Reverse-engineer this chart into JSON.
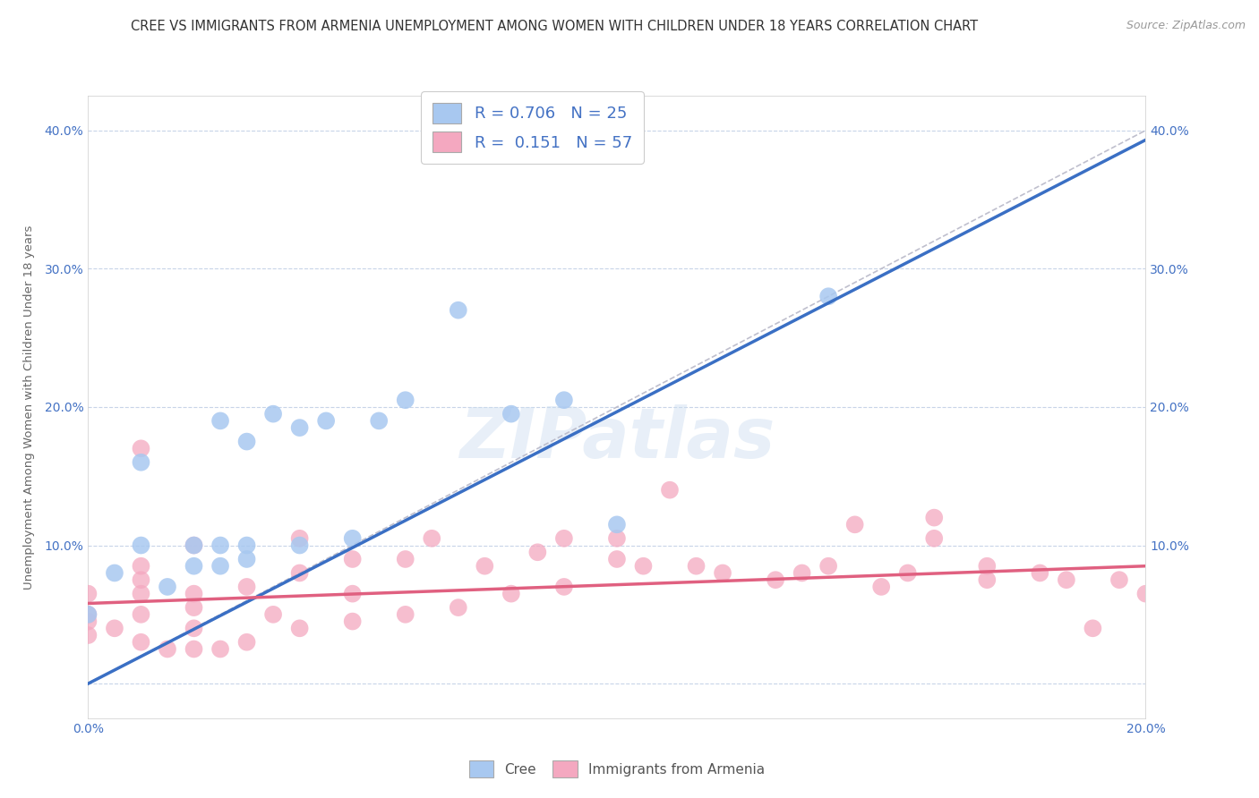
{
  "title": "CREE VS IMMIGRANTS FROM ARMENIA UNEMPLOYMENT AMONG WOMEN WITH CHILDREN UNDER 18 YEARS CORRELATION CHART",
  "source": "Source: ZipAtlas.com",
  "ylabel": "Unemployment Among Women with Children Under 18 years",
  "xlim": [
    0.0,
    0.2
  ],
  "ylim": [
    -0.025,
    0.425
  ],
  "xticks": [
    0.0,
    0.04,
    0.08,
    0.12,
    0.16,
    0.2
  ],
  "yticks": [
    0.0,
    0.1,
    0.2,
    0.3,
    0.4
  ],
  "ytick_labels": [
    "",
    "10.0%",
    "20.0%",
    "30.0%",
    "40.0%"
  ],
  "xtick_labels": [
    "0.0%",
    "",
    "",
    "",
    "",
    "20.0%"
  ],
  "cree_R": 0.706,
  "cree_N": 25,
  "armenia_R": 0.151,
  "armenia_N": 57,
  "cree_color": "#a8c8f0",
  "armenia_color": "#f4a8c0",
  "cree_line_color": "#3a6fc4",
  "armenia_line_color": "#e06080",
  "diagonal_color": "#b8b8c8",
  "cree_scatter_x": [
    0.0,
    0.005,
    0.01,
    0.01,
    0.015,
    0.02,
    0.02,
    0.025,
    0.025,
    0.025,
    0.03,
    0.03,
    0.03,
    0.035,
    0.04,
    0.04,
    0.045,
    0.05,
    0.055,
    0.06,
    0.07,
    0.08,
    0.09,
    0.1,
    0.14
  ],
  "cree_scatter_y": [
    0.05,
    0.08,
    0.1,
    0.16,
    0.07,
    0.085,
    0.1,
    0.085,
    0.1,
    0.19,
    0.09,
    0.1,
    0.175,
    0.195,
    0.1,
    0.185,
    0.19,
    0.105,
    0.19,
    0.205,
    0.27,
    0.195,
    0.205,
    0.115,
    0.28
  ],
  "armenia_scatter_x": [
    0.0,
    0.0,
    0.0,
    0.0,
    0.005,
    0.01,
    0.01,
    0.01,
    0.01,
    0.01,
    0.01,
    0.015,
    0.02,
    0.02,
    0.02,
    0.02,
    0.02,
    0.025,
    0.03,
    0.03,
    0.035,
    0.04,
    0.04,
    0.04,
    0.05,
    0.05,
    0.05,
    0.06,
    0.06,
    0.065,
    0.07,
    0.075,
    0.08,
    0.085,
    0.09,
    0.09,
    0.1,
    0.1,
    0.105,
    0.11,
    0.115,
    0.12,
    0.13,
    0.135,
    0.14,
    0.145,
    0.15,
    0.155,
    0.16,
    0.16,
    0.17,
    0.17,
    0.18,
    0.185,
    0.19,
    0.195,
    0.2
  ],
  "armenia_scatter_y": [
    0.035,
    0.045,
    0.05,
    0.065,
    0.04,
    0.03,
    0.05,
    0.065,
    0.075,
    0.085,
    0.17,
    0.025,
    0.025,
    0.04,
    0.055,
    0.065,
    0.1,
    0.025,
    0.03,
    0.07,
    0.05,
    0.04,
    0.08,
    0.105,
    0.045,
    0.065,
    0.09,
    0.05,
    0.09,
    0.105,
    0.055,
    0.085,
    0.065,
    0.095,
    0.105,
    0.07,
    0.09,
    0.105,
    0.085,
    0.14,
    0.085,
    0.08,
    0.075,
    0.08,
    0.085,
    0.115,
    0.07,
    0.08,
    0.105,
    0.12,
    0.075,
    0.085,
    0.08,
    0.075,
    0.04,
    0.075,
    0.065
  ],
  "background_color": "#ffffff",
  "grid_color": "#c8d4e8",
  "title_fontsize": 10.5,
  "axis_label_fontsize": 9.5,
  "tick_fontsize": 10,
  "legend_fontsize": 13,
  "source_fontsize": 9,
  "cree_line_x0": 0.0,
  "cree_line_y0": 0.0,
  "cree_line_x1": 0.145,
  "cree_line_y1": 0.285,
  "armenia_line_x0": 0.0,
  "armenia_line_y0": 0.058,
  "armenia_line_x1": 0.2,
  "armenia_line_y1": 0.085
}
